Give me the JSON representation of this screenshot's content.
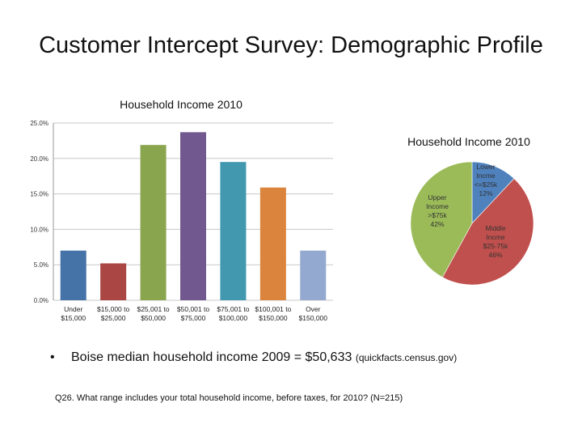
{
  "slide": {
    "title": "Customer Intercept Survey: Demographic Profile",
    "bullet_text": "Boise median household income 2009 = $50,633",
    "bullet_source": "(quickfacts.census.gov)",
    "question": "Q26.  What range includes your total household income, before taxes, for 2010? (N=215)"
  },
  "chart_data": [
    {
      "type": "bar",
      "title": "Household Income 2010",
      "categories": [
        [
          "Under",
          "$15,000"
        ],
        [
          "$15,000 to",
          "$25,000"
        ],
        [
          "$25,001 to",
          "$50,000"
        ],
        [
          "$50,001 to",
          "$75,000"
        ],
        [
          "$75,001 to",
          "$100,000"
        ],
        [
          "$100,001 to",
          "$150,000"
        ],
        [
          "Over",
          "$150,000"
        ]
      ],
      "values": [
        7.0,
        5.2,
        21.9,
        23.7,
        19.5,
        15.9,
        7.0
      ],
      "colors": [
        "#4572A7",
        "#AA4643",
        "#89A54E",
        "#71588F",
        "#4198AF",
        "#DB843D",
        "#93A9CF"
      ],
      "ylim": [
        0,
        25
      ],
      "yticks": [
        0,
        5,
        10,
        15,
        20,
        25
      ],
      "ytick_labels": [
        "0.0%",
        "5.0%",
        "10.0%",
        "15.0%",
        "20.0%",
        "25.0%"
      ],
      "grid": true
    },
    {
      "type": "pie",
      "title": "Household Income 2010",
      "slices": [
        {
          "label": [
            "Lower",
            "Incme",
            "<=$25k",
            "12%"
          ],
          "value": 12,
          "color": "#4F81BD"
        },
        {
          "label": [
            "Middle",
            "Incme",
            "$25-75k",
            "46%"
          ],
          "value": 46,
          "color": "#C0504D"
        },
        {
          "label": [
            "Upper",
            "Income",
            ">$75k",
            "42%"
          ],
          "value": 42,
          "color": "#9BBB59"
        }
      ]
    }
  ]
}
